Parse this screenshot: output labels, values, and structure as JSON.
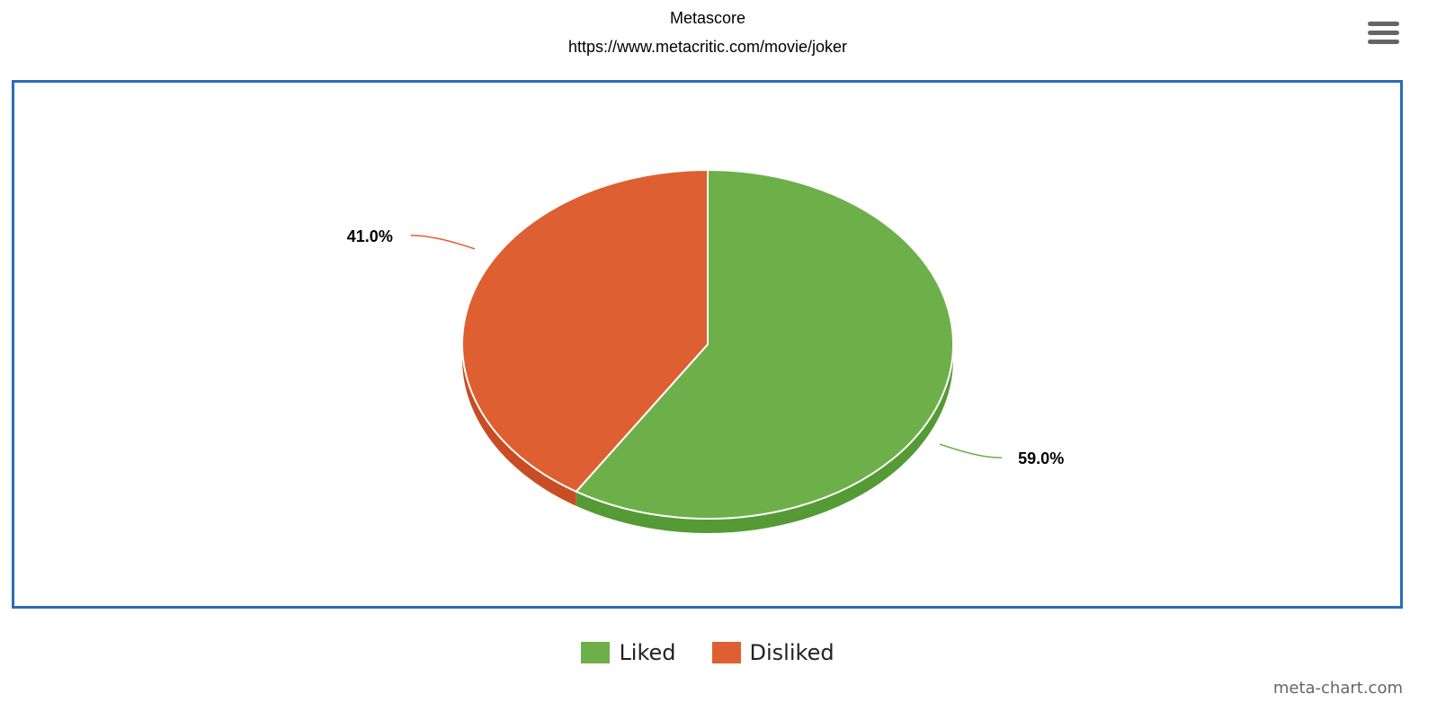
{
  "chart_data": {
    "type": "pie",
    "title": "Metascore",
    "subtitle": "https://www.metacritic.com/movie/joker",
    "slices": [
      {
        "name": "Liked",
        "value": 59.0,
        "label": "59.0%",
        "color": "#6db04a",
        "side_color": "#559a34"
      },
      {
        "name": "Disliked",
        "value": 41.0,
        "label": "41.0%",
        "color": "#de5f31",
        "side_color": "#c94d24"
      }
    ],
    "legend_position": "bottom",
    "three_d": true
  },
  "menu": {
    "icon": "hamburger-menu-icon"
  },
  "credit": "meta-chart.com",
  "colors": {
    "frame": "#2b6cb8"
  }
}
